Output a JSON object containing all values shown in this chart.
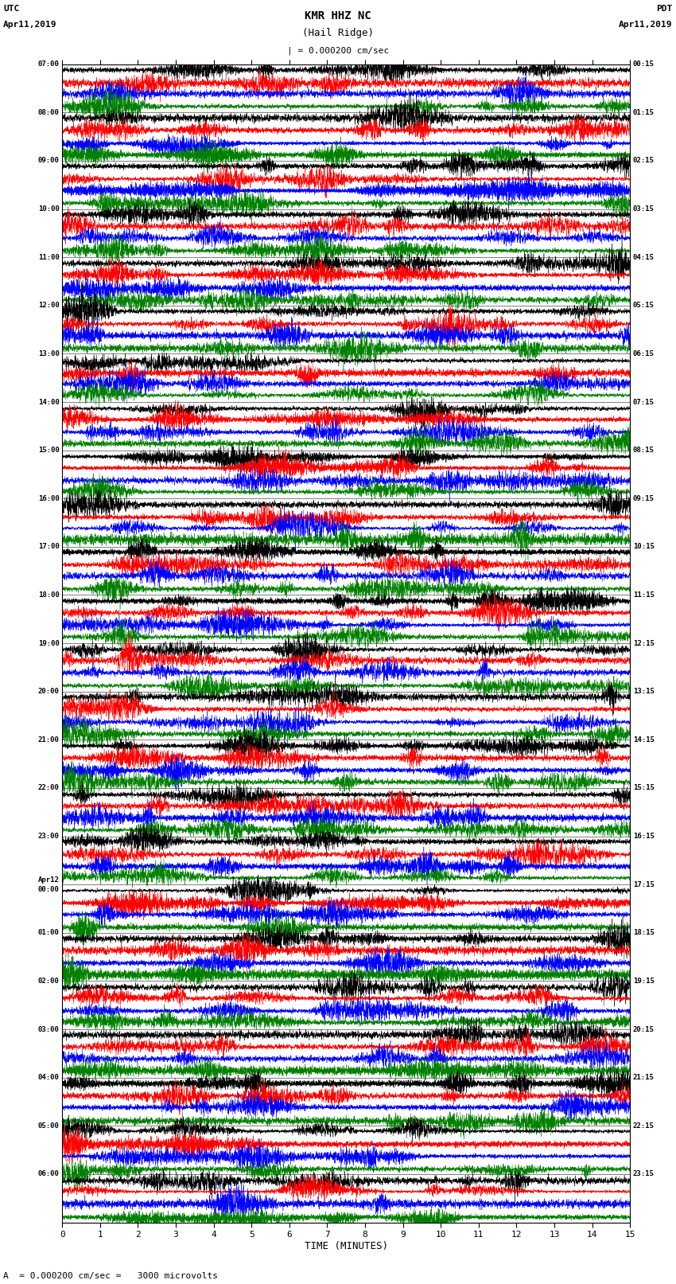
{
  "title_line1": "KMR HHZ NC",
  "title_line2": "(Hail Ridge)",
  "scale_text": "| = 0.000200 cm/sec",
  "bottom_note": "A  = 0.000200 cm/sec =   3000 microvolts",
  "xlabel": "TIME (MINUTES)",
  "left_header_line1": "UTC",
  "left_header_line2": "Apr11,2019",
  "right_header_line1": "PDT",
  "right_header_line2": "Apr11,2019",
  "left_times": [
    "07:00",
    "08:00",
    "09:00",
    "10:00",
    "11:00",
    "12:00",
    "13:00",
    "14:00",
    "15:00",
    "16:00",
    "17:00",
    "18:00",
    "19:00",
    "20:00",
    "21:00",
    "22:00",
    "23:00",
    "Apr12",
    "01:00",
    "02:00",
    "03:00",
    "04:00",
    "05:00",
    "06:00"
  ],
  "left_times_sub": [
    "",
    "",
    "",
    "",
    "",
    "",
    "",
    "",
    "",
    "",
    "",
    "",
    "",
    "",
    "",
    "",
    "",
    "00:00",
    "",
    "",
    "",
    "",
    "",
    ""
  ],
  "right_times": [
    "00:15",
    "01:15",
    "02:15",
    "03:15",
    "04:15",
    "05:15",
    "06:15",
    "07:15",
    "08:15",
    "09:15",
    "10:15",
    "11:15",
    "12:15",
    "13:15",
    "14:15",
    "15:15",
    "16:15",
    "17:15",
    "18:15",
    "19:15",
    "20:15",
    "21:15",
    "22:15",
    "23:15"
  ],
  "n_rows": 24,
  "n_traces_per_row": 4,
  "trace_colors": [
    "black",
    "red",
    "blue",
    "green"
  ],
  "x_min": 0,
  "x_max": 15,
  "x_ticks": [
    0,
    1,
    2,
    3,
    4,
    5,
    6,
    7,
    8,
    9,
    10,
    11,
    12,
    13,
    14,
    15
  ],
  "fig_width": 8.5,
  "fig_height": 16.13,
  "bg_color": "white",
  "seed": 42
}
